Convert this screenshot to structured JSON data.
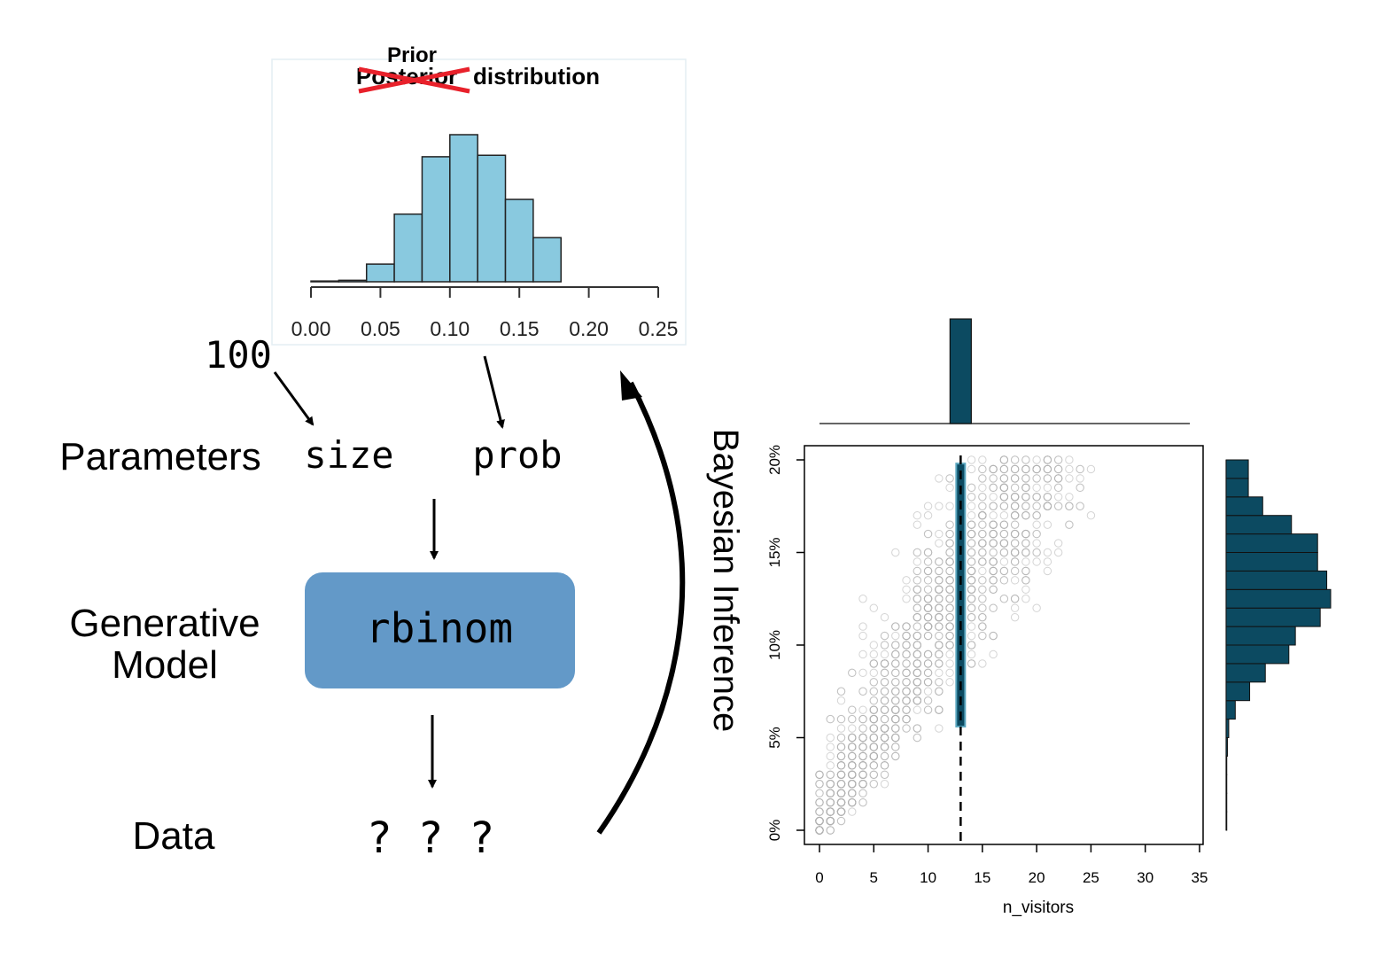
{
  "prior_plot": {
    "title_struck": "Posterior",
    "title_replacement": "Prior",
    "title_rest": "distribution",
    "strike_color": "#e8212b",
    "bar_color": "#89c9df"
  },
  "diagram": {
    "size_value": "100",
    "row_parameters": "Parameters",
    "param_size": "size",
    "param_prob": "prob",
    "row_model_line1": "Generative",
    "row_model_line2": "Model",
    "model_label": "rbinom",
    "model_color": "#6399c8",
    "row_data": "Data",
    "data_value": "? ? ?",
    "inference_label": "Bayesian Inference"
  },
  "scatter_plot": {
    "point_color": "#b0b0b0",
    "highlight_color": "#0c4a61"
  },
  "chart_data": [
    {
      "type": "bar",
      "title": "Prior distribution",
      "xlim": [
        0,
        0.25
      ],
      "x_ticks": [
        "0.00",
        "0.05",
        "0.10",
        "0.15",
        "0.20",
        "0.25"
      ],
      "bin_edges": [
        0.0,
        0.02,
        0.04,
        0.06,
        0.08,
        0.1,
        0.12,
        0.14,
        0.16,
        0.18,
        0.2
      ],
      "values": [
        0.5,
        1,
        12,
        46,
        85,
        100,
        86,
        56,
        30,
        0,
        0
      ]
    },
    {
      "type": "scatter",
      "xlabel": "n_visitors",
      "ylabel": "",
      "xlim": [
        0,
        35
      ],
      "ylim": [
        0,
        0.2
      ],
      "x_ticks": [
        "0",
        "5",
        "10",
        "15",
        "20",
        "25",
        "30",
        "35"
      ],
      "y_ticks": [
        "0%",
        "5%",
        "10%",
        "15%",
        "20%"
      ],
      "observed_x": 13,
      "top_marginal": {
        "x": 13,
        "value": 1
      },
      "right_marginal": {
        "bin_edges": [
          0.0,
          0.01,
          0.02,
          0.03,
          0.04,
          0.05,
          0.06,
          0.07,
          0.08,
          0.09,
          0.1,
          0.11,
          0.12,
          0.13,
          0.14,
          0.15,
          0.16,
          0.17,
          0.18,
          0.19,
          0.2
        ],
        "values": [
          0.5,
          0.5,
          0.5,
          0.5,
          1,
          2,
          7,
          18,
          30,
          48,
          53,
          72,
          80,
          77,
          70,
          70,
          50,
          28,
          17,
          17
        ]
      }
    }
  ]
}
